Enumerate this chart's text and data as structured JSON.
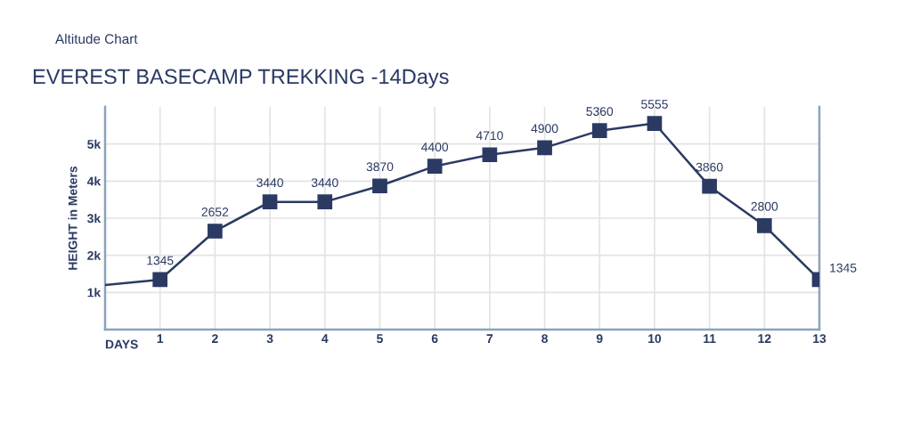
{
  "chart_data": {
    "type": "line",
    "title": "EVEREST BASECAMP TREKKING -14Days",
    "subtitle": "Altitude Chart",
    "xlabel": "DAYS",
    "ylabel": "HEIGHT in Meters",
    "series": [
      {
        "color": "#2b3a63",
        "x": [
          0,
          0.9
        ],
        "values": [
          1200,
          1330
        ],
        "marker": "none"
      },
      {
        "color": "#2b3a63",
        "x": [
          1,
          2,
          3,
          4,
          5,
          6,
          7,
          8,
          9,
          10,
          11,
          12,
          13
        ],
        "values": [
          1345,
          2652,
          3440,
          3440,
          3870,
          4400,
          4710,
          4900,
          5360,
          5555,
          3860,
          2800,
          1345
        ],
        "marker": "square",
        "data_labels": true
      }
    ],
    "xlim": [
      0,
      13
    ],
    "xticks": [
      1,
      2,
      3,
      4,
      5,
      6,
      7,
      8,
      9,
      10,
      11,
      12,
      13
    ],
    "ylim": [
      0,
      6000
    ],
    "yticks": [
      {
        "value": 1000,
        "label": "1k"
      },
      {
        "value": 2000,
        "label": "2k"
      },
      {
        "value": 3000,
        "label": "3k"
      },
      {
        "value": 4000,
        "label": "4k"
      },
      {
        "value": 5000,
        "label": "5k"
      }
    ],
    "grid": true,
    "line_style": "solid"
  }
}
